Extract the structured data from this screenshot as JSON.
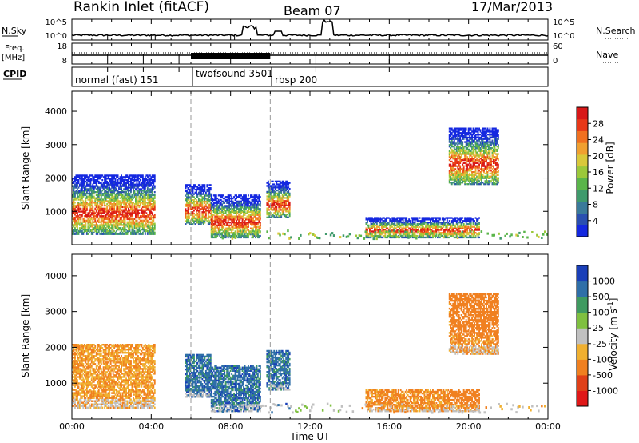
{
  "header": {
    "title": "Rankin Inlet (fitACF)",
    "beam": "Beam 07",
    "date": "17/Mar/2013"
  },
  "aux_panels": {
    "nsky_label": "N.Sky",
    "nsearch_label": "N.Search",
    "freq_label": "Freq.",
    "freq_unit": "[MHz]",
    "nave_label": "Nave",
    "cpid_label": "CPID",
    "left_ticks_top": [
      "10^5",
      "10^0"
    ],
    "right_ticks_top": [
      "10^5",
      "10^0"
    ],
    "left_ticks_freq": [
      "18",
      "8"
    ],
    "right_ticks_nave": [
      "60",
      "0"
    ],
    "cpid_modes": [
      "normal (fast) 151",
      "twofsound 3501",
      "rbsp 200"
    ]
  },
  "x_axis": {
    "label": "Time UT",
    "ticks": [
      "00:00",
      "04:00",
      "08:00",
      "12:00",
      "16:00",
      "20:00",
      "00:00"
    ]
  },
  "chart_data": [
    {
      "type": "heatmap",
      "ylabel": "Slant Range [km]",
      "ylim": [
        0,
        4600
      ],
      "yticks": [
        "1000",
        "2000",
        "3000",
        "4000"
      ],
      "colorbar_label": "Power [dB]",
      "colorbar_ticks": [
        "4",
        "8",
        "12",
        "16",
        "20",
        "24",
        "28"
      ],
      "colors": [
        "#1428e0",
        "#2a4fb0",
        "#3a7a9a",
        "#3f9a6c",
        "#5ab54a",
        "#9bc83a",
        "#d9c83a",
        "#f0a030",
        "#f07020",
        "#e83818",
        "#d81818"
      ],
      "regions": [
        {
          "t": [
            0.0,
            4.2
          ],
          "r": [
            300,
            2100
          ]
        },
        {
          "t": [
            5.7,
            7.0
          ],
          "r": [
            600,
            1800
          ]
        },
        {
          "t": [
            7.0,
            9.5
          ],
          "r": [
            200,
            1500
          ]
        },
        {
          "t": [
            9.8,
            11.0
          ],
          "r": [
            800,
            1900
          ]
        },
        {
          "t": [
            14.8,
            20.5
          ],
          "r": [
            200,
            800
          ]
        },
        {
          "t": [
            19.0,
            21.5
          ],
          "r": [
            1800,
            3500
          ]
        }
      ]
    },
    {
      "type": "heatmap",
      "ylabel": "Slant Range [km]",
      "ylim": [
        0,
        4600
      ],
      "yticks": [
        "1000",
        "2000",
        "3000",
        "4000"
      ],
      "colorbar_label": "Velocity [m s^-1]",
      "colorbar_ticks": [
        "1000",
        "500",
        "100",
        "25",
        "-25",
        "-100",
        "-500",
        "-1000"
      ],
      "colors": [
        "#1a3fb8",
        "#2f6fa8",
        "#3f9a60",
        "#7fc040",
        "#c0c0c0",
        "#f0b030",
        "#f08020",
        "#e04018",
        "#e01818"
      ],
      "regions": [
        {
          "t": [
            0.0,
            4.2
          ],
          "r": [
            300,
            2100
          ]
        },
        {
          "t": [
            5.7,
            7.0
          ],
          "r": [
            600,
            1800
          ]
        },
        {
          "t": [
            7.0,
            9.5
          ],
          "r": [
            200,
            1500
          ]
        },
        {
          "t": [
            9.8,
            11.0
          ],
          "r": [
            800,
            1900
          ]
        },
        {
          "t": [
            14.8,
            20.5
          ],
          "r": [
            200,
            800
          ]
        },
        {
          "t": [
            19.0,
            21.5
          ],
          "r": [
            1800,
            3500
          ]
        }
      ]
    }
  ]
}
